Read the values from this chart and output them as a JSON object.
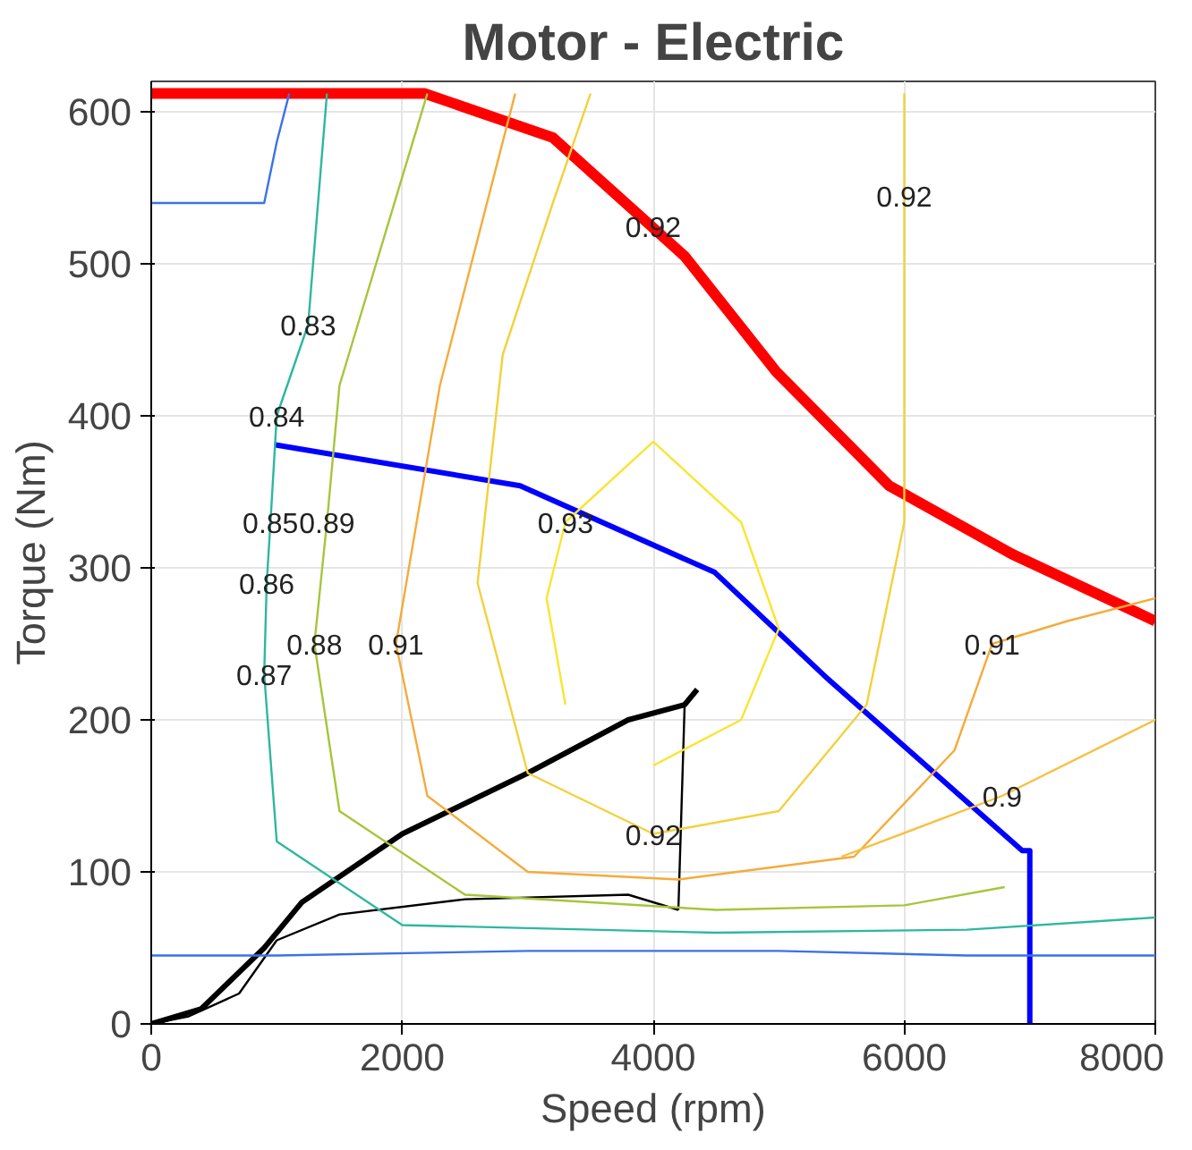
{
  "chart_data": {
    "type": "line",
    "title": "Motor - Electric",
    "xlabel": "Speed (rpm)",
    "ylabel": "Torque (Nm)",
    "xlim": [
      0,
      8000
    ],
    "ylim": [
      0,
      620
    ],
    "xticks": [
      0,
      2000,
      4000,
      6000,
      8000
    ],
    "yticks": [
      0,
      100,
      200,
      300,
      400,
      500,
      600
    ],
    "grid": true,
    "marker": "none",
    "line_style": "solid",
    "series": [
      {
        "color": "#ff0000",
        "x": [
          0,
          2180,
          3200,
          4250,
          4980,
          5880,
          6860,
          8000
        ],
        "values": [
          612,
          612,
          583,
          505,
          429,
          354,
          309,
          265
        ]
      },
      {
        "color": "#0000ff",
        "x": [
          980,
          2940,
          4490,
          5390,
          6940,
          7000,
          7000
        ],
        "values": [
          381,
          354,
          297,
          227,
          114,
          114,
          0
        ]
      },
      {
        "color": "#000000",
        "x": [
          0,
          400,
          900,
          1200,
          2000,
          3000,
          3800,
          4250,
          4350
        ],
        "values": [
          0,
          10,
          50,
          80,
          125,
          165,
          200,
          210,
          220
        ]
      },
      {
        "color": "#000000",
        "x": [
          0,
          300,
          700,
          1000,
          1500,
          2500,
          3800,
          4200
        ],
        "values": [
          0,
          5,
          20,
          55,
          72,
          82,
          85,
          75
        ]
      },
      {
        "color": "#000000",
        "x": [
          4200,
          4250
        ],
        "values": [
          75,
          210
        ]
      },
      {
        "color": "#f9e532",
        "x": [
          3300,
          3150,
          3300,
          4000,
          4700,
          5000,
          4700,
          4000
        ],
        "values": [
          210,
          280,
          330,
          383,
          330,
          260,
          200,
          170
        ]
      },
      {
        "color": "#f2d13d",
        "x": [
          6000,
          6000,
          5700,
          5000,
          4000,
          3000,
          2600,
          2800,
          3200,
          3500
        ],
        "values": [
          612,
          330,
          210,
          140,
          125,
          165,
          290,
          440,
          540,
          612
        ]
      },
      {
        "color": "#f5ab3b",
        "x": [
          2900,
          2300,
          1950,
          2200,
          3000,
          4200,
          5600,
          6400,
          6700,
          7300,
          8000
        ],
        "values": [
          612,
          420,
          250,
          150,
          100,
          95,
          110,
          180,
          250,
          265,
          280
        ]
      },
      {
        "color": "#f7c040",
        "x": [
          5500,
          6780,
          8000
        ],
        "values": [
          110,
          150,
          200
        ]
      },
      {
        "color": "#a6c53a",
        "x": [
          2200,
          1500,
          1400,
          1300,
          1500,
          2500,
          4500,
          6000,
          6800
        ],
        "values": [
          612,
          420,
          330,
          250,
          140,
          85,
          75,
          78,
          90
        ]
      },
      {
        "color": "#2eb7a0",
        "x": [
          1400,
          1250,
          1000,
          950,
          920,
          900,
          1000,
          2000,
          4500,
          6500,
          8000
        ],
        "values": [
          612,
          460,
          400,
          330,
          290,
          230,
          120,
          65,
          60,
          62,
          70
        ]
      },
      {
        "color": "#3b72e8",
        "x": [
          1100,
          1000,
          900,
          600,
          0
        ],
        "values": [
          612,
          580,
          540,
          540,
          540
        ]
      },
      {
        "color": "#3b72e8",
        "x": [
          0,
          1000,
          3000,
          5000,
          6500,
          8000
        ],
        "values": [
          45,
          45,
          48,
          48,
          45,
          45
        ]
      }
    ],
    "annotations": [
      {
        "text": "0.83",
        "x": 1250,
        "y": 460
      },
      {
        "text": "0.84",
        "x": 1000,
        "y": 400
      },
      {
        "text": "0.85",
        "x": 950,
        "y": 330
      },
      {
        "text": "0.86",
        "x": 920,
        "y": 290
      },
      {
        "text": "0.87",
        "x": 900,
        "y": 230
      },
      {
        "text": "0.88",
        "x": 1300,
        "y": 250
      },
      {
        "text": "0.89",
        "x": 1400,
        "y": 330
      },
      {
        "text": "0.91",
        "x": 1950,
        "y": 250
      },
      {
        "text": "0.92",
        "x": 4000,
        "y": 125
      },
      {
        "text": "0.92",
        "x": 4000,
        "y": 525
      },
      {
        "text": "0.92",
        "x": 6000,
        "y": 545
      },
      {
        "text": "0.93",
        "x": 3300,
        "y": 330
      },
      {
        "text": "0.91",
        "x": 6700,
        "y": 250
      },
      {
        "text": "0.9",
        "x": 6780,
        "y": 150
      }
    ]
  }
}
